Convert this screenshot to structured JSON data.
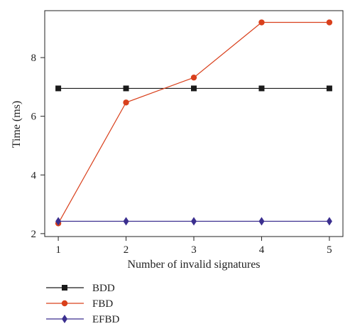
{
  "chart_data": {
    "type": "line",
    "xlabel": "Number of invalid signatures",
    "ylabel": "Time (ms)",
    "x": [
      1,
      2,
      3,
      4,
      5
    ],
    "xlim": [
      0.8,
      5.2
    ],
    "ylim": [
      1.9,
      9.6
    ],
    "xticks": [
      1,
      2,
      3,
      4,
      5
    ],
    "yticks": [
      2,
      4,
      6,
      8
    ],
    "grid": false,
    "legend_position": "below plot, left",
    "series": [
      {
        "name": "BDD",
        "color": "#1a1a1a",
        "marker": "square",
        "values": [
          6.95,
          6.95,
          6.95,
          6.95,
          6.95
        ]
      },
      {
        "name": "FBD",
        "color": "#d9401c",
        "marker": "circle",
        "values": [
          2.35,
          6.47,
          7.32,
          9.2,
          9.2
        ]
      },
      {
        "name": "EFBD",
        "color": "#3b2f8f",
        "marker": "diamond",
        "values": [
          2.42,
          2.42,
          2.42,
          2.42,
          2.42
        ]
      }
    ]
  }
}
